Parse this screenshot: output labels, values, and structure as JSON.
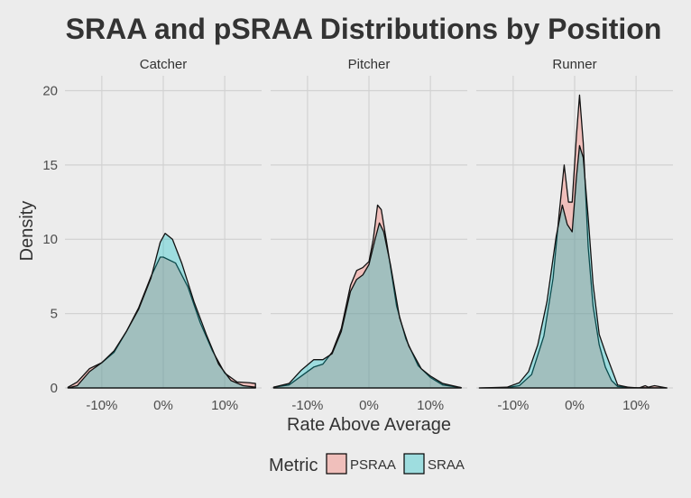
{
  "chart_data": {
    "type": "area",
    "title": "SRAA and pSRAA Distributions by Position",
    "xlabel": "Rate Above Average",
    "ylabel": "Density",
    "panels": [
      "Catcher",
      "Pitcher",
      "Runner"
    ],
    "xlim": [
      -0.16,
      0.16
    ],
    "ylim": [
      0,
      21
    ],
    "xticks": [
      -0.1,
      0,
      0.1
    ],
    "xtick_labels": [
      "-10%",
      "0%",
      "10%"
    ],
    "yticks": [
      0,
      5,
      10,
      15,
      20
    ],
    "ytick_labels": [
      "0",
      "5",
      "10",
      "15",
      "20"
    ],
    "grid": true,
    "legend": {
      "title": "Metric",
      "position": "bottom",
      "entries": [
        {
          "label": "PSRAA",
          "color": "#f8766d"
        },
        {
          "label": "SRAA",
          "color": "#00bfc4"
        }
      ]
    },
    "series": {
      "Catcher": {
        "PSRAA": [
          [
            -0.155,
            0.05
          ],
          [
            -0.14,
            0.4
          ],
          [
            -0.12,
            1.3
          ],
          [
            -0.1,
            1.7
          ],
          [
            -0.08,
            2.4
          ],
          [
            -0.06,
            3.8
          ],
          [
            -0.04,
            5.4
          ],
          [
            -0.02,
            7.5
          ],
          [
            -0.005,
            8.8
          ],
          [
            0.0,
            8.8
          ],
          [
            0.02,
            8.4
          ],
          [
            0.04,
            6.8
          ],
          [
            0.06,
            4.4
          ],
          [
            0.08,
            2.5
          ],
          [
            0.1,
            1.0
          ],
          [
            0.12,
            0.4
          ],
          [
            0.14,
            0.35
          ],
          [
            0.15,
            0.3
          ]
        ],
        "SRAA": [
          [
            -0.155,
            0.0
          ],
          [
            -0.14,
            0.15
          ],
          [
            -0.12,
            1.1
          ],
          [
            -0.1,
            1.7
          ],
          [
            -0.08,
            2.5
          ],
          [
            -0.06,
            3.8
          ],
          [
            -0.04,
            5.3
          ],
          [
            -0.02,
            7.4
          ],
          [
            -0.005,
            9.8
          ],
          [
            0.003,
            10.4
          ],
          [
            0.015,
            10.0
          ],
          [
            0.03,
            8.4
          ],
          [
            0.05,
            5.8
          ],
          [
            0.07,
            3.6
          ],
          [
            0.09,
            1.6
          ],
          [
            0.11,
            0.5
          ],
          [
            0.13,
            0.15
          ],
          [
            0.15,
            0.05
          ]
        ]
      },
      "Pitcher": {
        "PSRAA": [
          [
            -0.155,
            0.05
          ],
          [
            -0.13,
            0.2
          ],
          [
            -0.11,
            0.8
          ],
          [
            -0.09,
            1.4
          ],
          [
            -0.075,
            1.6
          ],
          [
            -0.06,
            2.4
          ],
          [
            -0.045,
            4.0
          ],
          [
            -0.03,
            6.9
          ],
          [
            -0.02,
            7.9
          ],
          [
            -0.01,
            8.1
          ],
          [
            0.0,
            8.5
          ],
          [
            0.007,
            10.0
          ],
          [
            0.014,
            12.3
          ],
          [
            0.02,
            12.0
          ],
          [
            0.03,
            9.5
          ],
          [
            0.045,
            5.5
          ],
          [
            0.06,
            3.3
          ],
          [
            0.08,
            1.5
          ],
          [
            0.1,
            0.7
          ],
          [
            0.12,
            0.2
          ],
          [
            0.15,
            0.02
          ]
        ],
        "SRAA": [
          [
            -0.155,
            0.05
          ],
          [
            -0.13,
            0.3
          ],
          [
            -0.11,
            1.2
          ],
          [
            -0.09,
            1.9
          ],
          [
            -0.075,
            1.9
          ],
          [
            -0.06,
            2.3
          ],
          [
            -0.045,
            3.8
          ],
          [
            -0.03,
            6.5
          ],
          [
            -0.02,
            7.3
          ],
          [
            -0.01,
            7.6
          ],
          [
            0.0,
            8.3
          ],
          [
            0.01,
            10.0
          ],
          [
            0.017,
            11.1
          ],
          [
            0.024,
            10.5
          ],
          [
            0.035,
            8.3
          ],
          [
            0.05,
            4.7
          ],
          [
            0.065,
            2.8
          ],
          [
            0.085,
            1.3
          ],
          [
            0.1,
            0.8
          ],
          [
            0.12,
            0.3
          ],
          [
            0.15,
            0.02
          ]
        ]
      },
      "Runner": {
        "PSRAA": [
          [
            -0.155,
            0.0
          ],
          [
            -0.11,
            0.02
          ],
          [
            -0.09,
            0.15
          ],
          [
            -0.07,
            0.9
          ],
          [
            -0.05,
            3.5
          ],
          [
            -0.035,
            7.4
          ],
          [
            -0.025,
            11.8
          ],
          [
            -0.017,
            15.0
          ],
          [
            -0.01,
            12.5
          ],
          [
            -0.004,
            12.5
          ],
          [
            0.003,
            17.0
          ],
          [
            0.008,
            19.7
          ],
          [
            0.014,
            16.5
          ],
          [
            0.022,
            9.5
          ],
          [
            0.03,
            5.5
          ],
          [
            0.04,
            2.9
          ],
          [
            0.05,
            1.4
          ],
          [
            0.06,
            0.5
          ],
          [
            0.07,
            0.1
          ],
          [
            0.105,
            0.0
          ],
          [
            0.115,
            0.15
          ],
          [
            0.12,
            0.05
          ],
          [
            0.13,
            0.15
          ],
          [
            0.15,
            0.0
          ]
        ],
        "SRAA": [
          [
            -0.155,
            0.0
          ],
          [
            -0.11,
            0.05
          ],
          [
            -0.09,
            0.35
          ],
          [
            -0.075,
            1.1
          ],
          [
            -0.06,
            2.9
          ],
          [
            -0.045,
            5.8
          ],
          [
            -0.03,
            10.2
          ],
          [
            -0.02,
            12.3
          ],
          [
            -0.012,
            11.0
          ],
          [
            -0.004,
            10.5
          ],
          [
            0.003,
            14.2
          ],
          [
            0.008,
            16.3
          ],
          [
            0.014,
            15.5
          ],
          [
            0.022,
            11.5
          ],
          [
            0.03,
            7.0
          ],
          [
            0.04,
            3.6
          ],
          [
            0.05,
            2.4
          ],
          [
            0.06,
            1.3
          ],
          [
            0.07,
            0.2
          ],
          [
            0.09,
            0.02
          ],
          [
            0.15,
            0.0
          ]
        ]
      }
    }
  }
}
